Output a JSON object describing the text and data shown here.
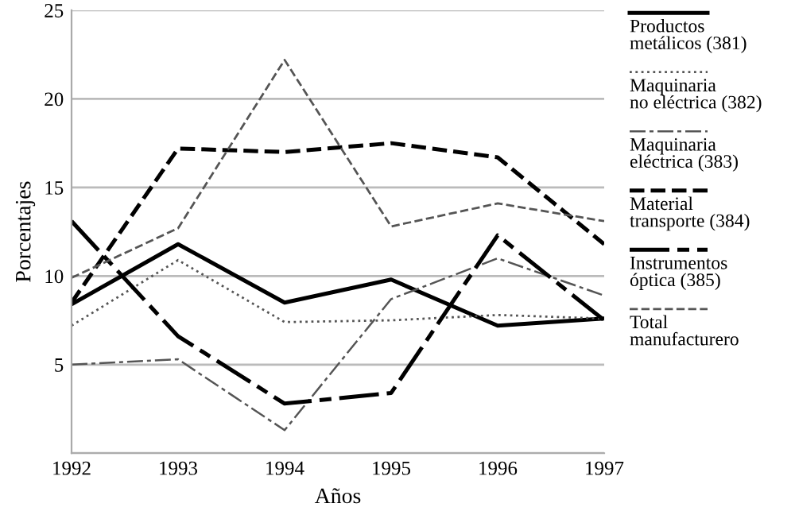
{
  "chart_data": {
    "type": "line",
    "xlabel": "Años",
    "ylabel": "Porcentajes",
    "x": [
      1992,
      1993,
      1994,
      1995,
      1996,
      1997
    ],
    "xlim": [
      1992,
      1997
    ],
    "xticks": [
      1992,
      1993,
      1994,
      1995,
      1996,
      1997
    ],
    "ylim": [
      0,
      25
    ],
    "yticks": [
      {
        "value": 0,
        "label": null
      },
      5,
      10,
      15,
      20,
      25
    ],
    "grid": "y",
    "legend": "right",
    "marker": "none",
    "series": [
      {
        "name": "Productos metálicos (381)",
        "color": "#000000",
        "line_style": "solid",
        "values": [
          8.4,
          11.8,
          8.5,
          9.8,
          7.2,
          7.6
        ]
      },
      {
        "name": "Maquinaria no eléctrica (382)",
        "color": "#555555",
        "line_style": "dotted",
        "values": [
          7.2,
          10.9,
          7.4,
          7.5,
          7.8,
          7.6
        ]
      },
      {
        "name": "Maquinaria eléctrica (383)",
        "color": "#555555",
        "line_style": "dashdot",
        "values": [
          5.0,
          5.3,
          1.3,
          8.7,
          11.0,
          8.9
        ]
      },
      {
        "name": "Material transporte (384)",
        "color": "#000000",
        "line_style": "dashed",
        "values": [
          8.5,
          17.2,
          17.0,
          17.5,
          16.7,
          11.8
        ]
      },
      {
        "name": "Instrumentos óptica (385)",
        "color": "#000000",
        "line_style": "longdashdot",
        "values": [
          13.1,
          6.6,
          2.8,
          3.4,
          12.3,
          7.5
        ]
      },
      {
        "name": "Total manufacturero",
        "color": "#555555",
        "line_style": "dashed",
        "values": [
          9.9,
          12.7,
          22.2,
          12.8,
          14.1,
          13.1
        ]
      }
    ]
  }
}
